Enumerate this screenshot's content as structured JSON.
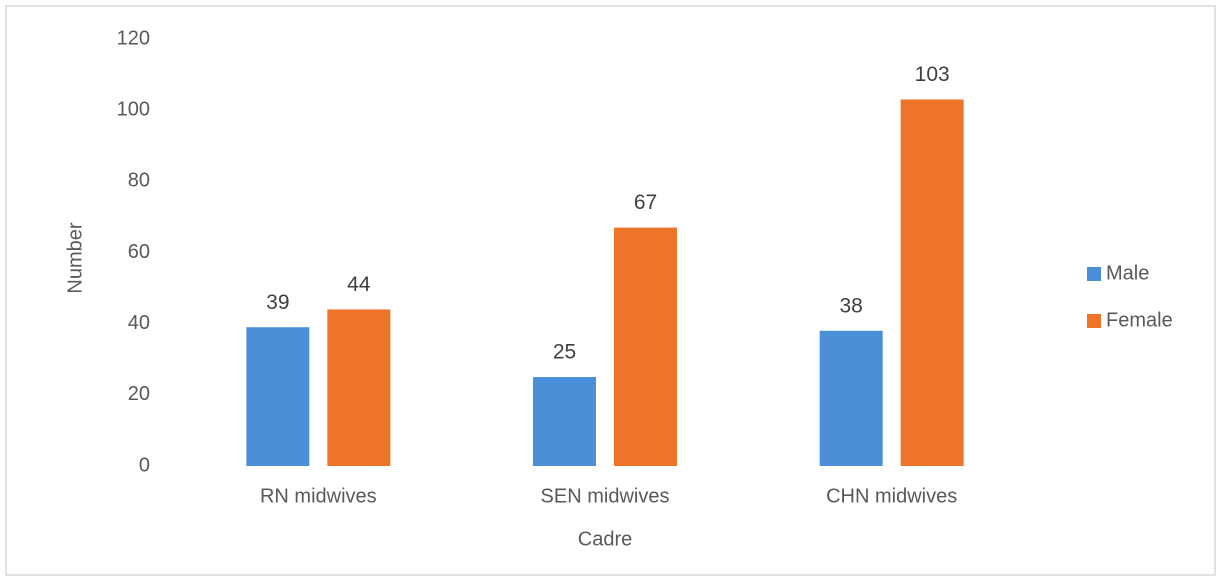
{
  "chart_data": {
    "type": "bar",
    "categories": [
      "RN midwives",
      "SEN midwives",
      "CHN midwives"
    ],
    "series": [
      {
        "name": "Male",
        "color": "#4a8fd8",
        "values": [
          39,
          25,
          38
        ]
      },
      {
        "name": "Female",
        "color": "#ed7428",
        "values": [
          44,
          67,
          103
        ]
      }
    ],
    "ylim": [
      0,
      120
    ],
    "yticks": [
      0,
      20,
      40,
      60,
      80,
      100,
      120
    ],
    "x_label": "Cadre",
    "y_label": "Number",
    "legend": "right"
  }
}
